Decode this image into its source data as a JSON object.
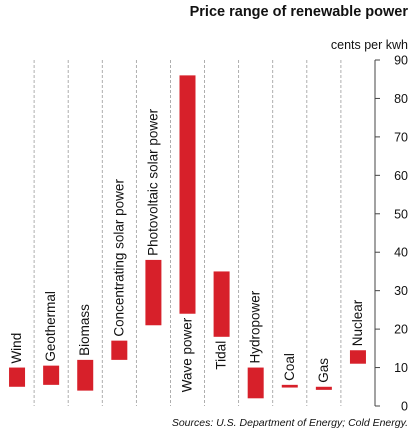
{
  "chart_data": {
    "type": "bar",
    "title": "Price range of renewable power",
    "ylabel": "cents per kwh",
    "ylim": [
      0,
      90
    ],
    "yticks": [
      0,
      10,
      20,
      30,
      40,
      50,
      60,
      70,
      80,
      90
    ],
    "grid": "vertical separators",
    "bar_color": "#d7202a",
    "categories": [
      "Wind",
      "Geothermal",
      "Biomass",
      "Concentrating solar power",
      "Photovoltaic solar power",
      "Wave power",
      "Tidal",
      "Hydropower",
      "Coal",
      "Gas",
      "Nuclear"
    ],
    "series": [
      {
        "low": [
          5,
          5.5,
          4,
          12,
          21,
          24,
          18,
          2,
          4.8,
          4.2,
          11
        ],
        "high": [
          10,
          10.5,
          12,
          17,
          38,
          86,
          35,
          10,
          5.5,
          5,
          14.5
        ]
      }
    ],
    "label_positions": [
      "above",
      "above",
      "above",
      "above",
      "above",
      "below",
      "below",
      "above",
      "above",
      "above",
      "above"
    ],
    "source": "Sources: U.S. Department of Energy; Cold Energy."
  }
}
